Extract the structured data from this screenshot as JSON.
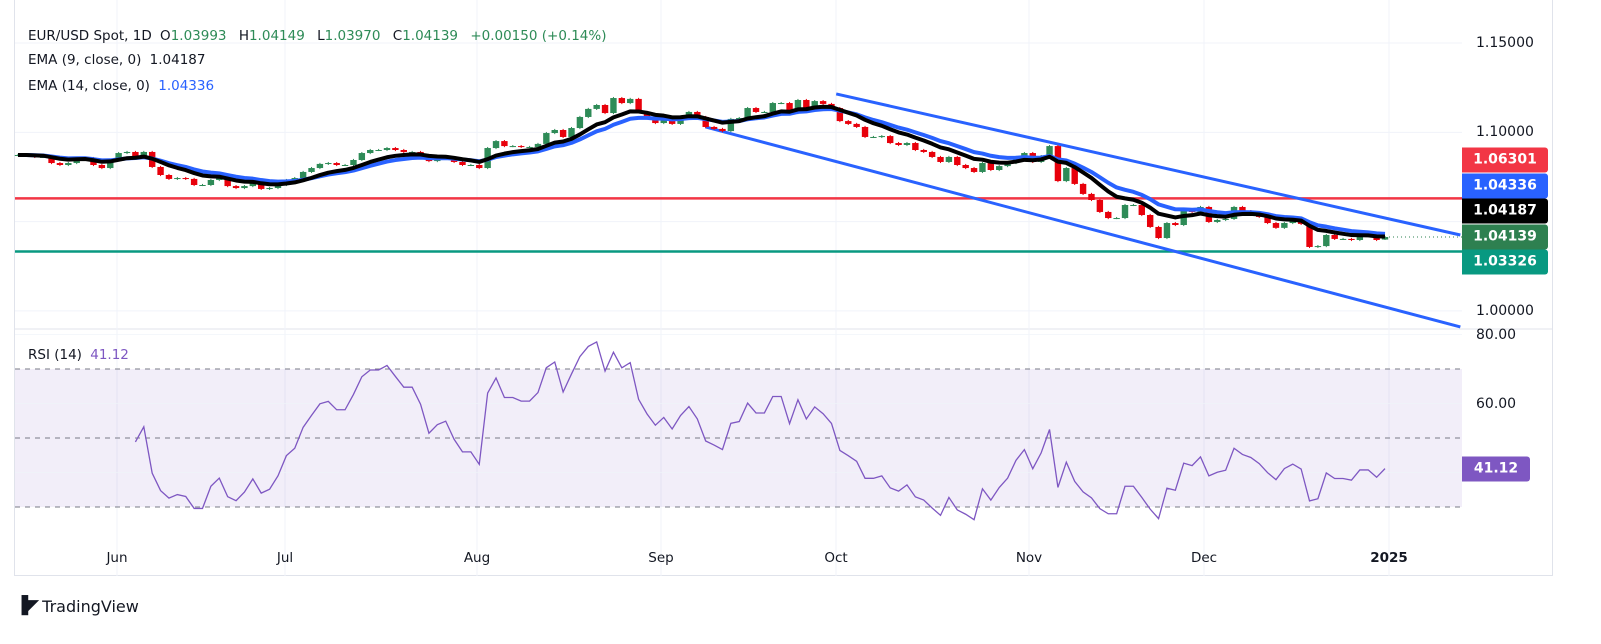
{
  "legend": {
    "symbol": "EUR/USD Spot, 1D",
    "open_label": "O",
    "open": "1.03993",
    "high_label": "H",
    "high": "1.04149",
    "low_label": "L",
    "low": "1.03970",
    "close_label": "C",
    "close": "1.04139",
    "change": "+0.00150 (+0.14%)",
    "ema9_label": "EMA (9, close, 0)",
    "ema9_value": "1.04187",
    "ema14_label": "EMA (14, close, 0)",
    "ema14_value": "1.04336",
    "rsi_label": "RSI (14)",
    "rsi_value": "41.12"
  },
  "price_tags": [
    {
      "value": "1.06301",
      "color": "#f23645"
    },
    {
      "value": "1.04336",
      "color": "#2962ff"
    },
    {
      "value": "1.04187",
      "color": "#000000"
    },
    {
      "value": "1.04139",
      "color": "#2e8050"
    },
    {
      "value": "1.03326",
      "color": "#089981"
    }
  ],
  "rsi_tag": {
    "value": "41.12",
    "color": "#7e57c2"
  },
  "colors": {
    "up": "#2e8b57",
    "down": "#e8000b",
    "ema9": "#000000",
    "ema14": "#2962ff",
    "rsi": "#7e57c2",
    "resistance": "#f23645",
    "support": "#089981",
    "channel": "#2962ff"
  },
  "branding": {
    "name": "TradingView"
  },
  "chart_data": [
    {
      "type": "candlestick",
      "title": "EUR/USD Spot, 1D",
      "x_ticks": [
        "Jun",
        "Jul",
        "Aug",
        "Sep",
        "Oct",
        "Nov",
        "Dec",
        "2025"
      ],
      "y_ticks": [
        "1.15000",
        "1.10000",
        "1.00000"
      ],
      "ylim": [
        0.985,
        1.165
      ],
      "grid": true,
      "closes": [
        1.0873,
        1.0873,
        1.0862,
        1.0862,
        1.0828,
        1.0817,
        1.0828,
        1.0856,
        1.0856,
        1.0817,
        1.08,
        1.0845,
        1.0884,
        1.089,
        1.0867,
        1.089,
        1.0806,
        1.0761,
        1.0739,
        1.0744,
        1.0739,
        1.0705,
        1.0705,
        1.0733,
        1.0744,
        1.0699,
        1.0688,
        1.0699,
        1.0716,
        1.0683,
        1.0688,
        1.0705,
        1.0733,
        1.0744,
        1.0778,
        1.08,
        1.0823,
        1.0828,
        1.0817,
        1.0817,
        1.0845,
        1.0884,
        1.0901,
        1.0901,
        1.0912,
        1.0901,
        1.089,
        1.089,
        1.0873,
        1.0839,
        1.0851,
        1.0856,
        1.0834,
        1.0817,
        1.0817,
        1.08,
        1.0912,
        1.0951,
        1.0923,
        1.0923,
        1.0918,
        1.0918,
        1.0935,
        1.0996,
        1.1013,
        1.0974,
        1.1024,
        1.1086,
        1.1131,
        1.1153,
        1.1108,
        1.1192,
        1.1164,
        1.1187,
        1.1114,
        1.108,
        1.1052,
        1.1075,
        1.1047,
        1.1086,
        1.1114,
        1.1086,
        1.103,
        1.1019,
        1.1007,
        1.1075,
        1.108,
        1.1136,
        1.1114,
        1.1114,
        1.1164,
        1.1164,
        1.1108,
        1.1181,
        1.1136,
        1.1175,
        1.1159,
        1.1136,
        1.1063,
        1.1047,
        1.103,
        1.0974,
        1.0974,
        1.0979,
        1.094,
        1.0929,
        1.094,
        1.0901,
        1.089,
        1.0862,
        1.0834,
        1.0862,
        1.0817,
        1.08,
        1.0778,
        1.0828,
        1.0789,
        1.0811,
        1.0828,
        1.0862,
        1.0884,
        1.0834,
        1.0867,
        1.0923,
        1.0727,
        1.08,
        1.0711,
        1.0655,
        1.0621,
        1.0554,
        1.052,
        1.052,
        1.0593,
        1.0593,
        1.0537,
        1.047,
        1.0408,
        1.0492,
        1.0481,
        1.0565,
        1.0554,
        1.0582,
        1.0498,
        1.0509,
        1.0515,
        1.0582,
        1.0559,
        1.0548,
        1.0526,
        1.0492,
        1.0465,
        1.0492,
        1.0503,
        1.0487,
        1.0358,
        1.0363,
        1.0425,
        1.0403,
        1.0403,
        1.0397,
        1.0419,
        1.0419,
        1.0397,
        1.0414
      ],
      "last_candle": {
        "open": 1.03993,
        "high": 1.04149,
        "low": 1.0397,
        "close": 1.04139
      },
      "indicators": [
        {
          "name": "EMA (9, close, 0)",
          "period": 9,
          "last": 1.04187
        },
        {
          "name": "EMA (14, close, 0)",
          "period": 14,
          "last": 1.04336
        }
      ],
      "horizontal_lines": [
        {
          "value": 1.06301,
          "color": "#f23645"
        },
        {
          "value": 1.03326,
          "color": "#089981"
        }
      ],
      "trendlines": [
        {
          "from": [
            "2024-09-30",
            1.1215
          ],
          "to": [
            "2025-01-13",
            1.0425
          ]
        },
        {
          "from": [
            "2024-09-08",
            1.103
          ],
          "to": [
            "2025-01-13",
            0.991
          ]
        }
      ]
    },
    {
      "type": "line",
      "title": "RSI (14)",
      "period": 14,
      "last": 41.12,
      "y_ticks": [
        "80.00",
        "60.00"
      ],
      "levels": [
        70,
        50,
        30
      ],
      "ylim": [
        0,
        90
      ]
    }
  ]
}
